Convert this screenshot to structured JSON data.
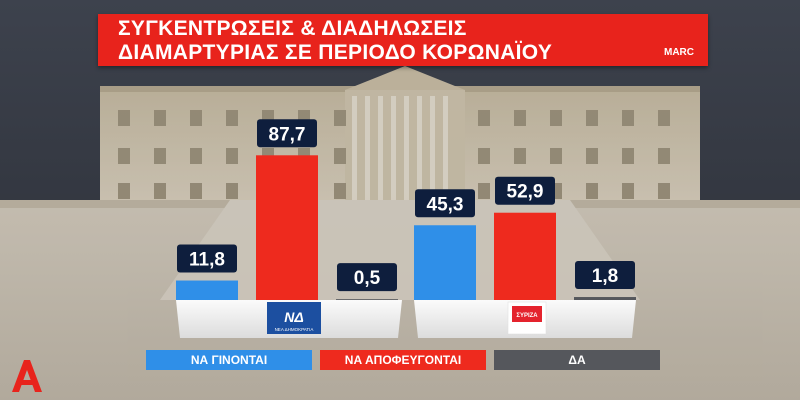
{
  "header": {
    "title_line1": "ΣΥΓΚΕΝΤΡΩΣΕΙΣ & ΔΙΑΔΗΛΩΣΕΙΣ",
    "title_line2": "ΔΙΑΜΑΡΤΥΡΙΑΣ ΣΕ ΠΕΡΙΟΔΟ ΚΟΡΩΝΑΪΟΥ",
    "source": "MARC"
  },
  "logos": {
    "nd_text": "ΝΕΑ ΔΗΜΟΚΡΑΤΙΑ",
    "syriza_text": "ΣΥΡΙΖΑ"
  },
  "colors": {
    "blue": "#2f8fe8",
    "red": "#ee2a1e",
    "gray": "#55575c",
    "label_bg": "#0e1e3d",
    "title_red": "#e8231c"
  },
  "chart_data": {
    "type": "bar",
    "title": "ΣΥΓΚΕΝΤΡΩΣΕΙΣ & ΔΙΑΔΗΛΩΣΕΙΣ ΔΙΑΜΑΡΤΥΡΙΑΣ ΣΕ ΠΕΡΙΟΔΟ ΚΟΡΩΝΑΪΟΥ",
    "categories": [
      "ΝΔ",
      "ΣΥΡΙΖΑ"
    ],
    "series": [
      {
        "name": "ΝΑ ΓΙΝΟΝΤΑΙ",
        "color": "#2f8fe8",
        "values": [
          11.8,
          45.3
        ]
      },
      {
        "name": "ΝΑ ΑΠΟΦΕΥΓΟΝΤΑΙ",
        "color": "#ee2a1e",
        "values": [
          87.7,
          52.9
        ]
      },
      {
        "name": "ΔΑ",
        "color": "#55575c",
        "values": [
          0.5,
          1.8
        ]
      }
    ],
    "value_labels": [
      [
        "11,8",
        "87,7",
        "0,5"
      ],
      [
        "45,3",
        "52,9",
        "1,8"
      ]
    ],
    "legend": "bottom",
    "ylim": [
      0,
      100
    ]
  }
}
